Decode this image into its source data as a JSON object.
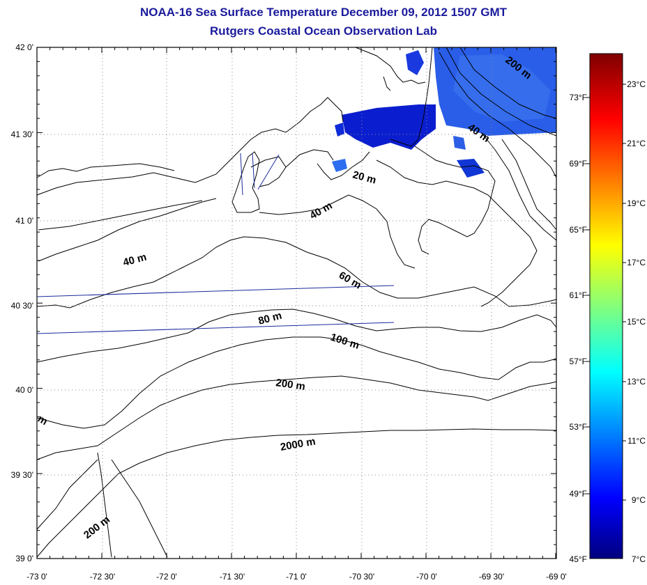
{
  "header": {
    "title": "NOAA-16 Sea Surface Temperature December 09, 2012 1507 GMT",
    "subtitle": "Rutgers Coastal Ocean Observation Lab"
  },
  "map": {
    "lat_labels": [
      "42 0'",
      "41 30'",
      "41 0'",
      "40 30'",
      "40 0'",
      "39 30'",
      "39 0'"
    ],
    "lon_labels": [
      "-73 0'",
      "-72 30'",
      "-72 0'",
      "-71 30'",
      "-71 0'",
      "-70 30'",
      "-70 0'",
      "-69 30'",
      "-69 0'"
    ],
    "contour_labels": [
      "200 m",
      "40 m",
      "20 m",
      "40 m",
      "40 m",
      "60 m",
      "80 m",
      "100 m",
      "200 m",
      "2000 m",
      "200 m",
      "m"
    ]
  },
  "colorbar": {
    "celsius_labels": [
      "23°C",
      "21°C",
      "19°C",
      "17°C",
      "15°C",
      "13°C",
      "11°C",
      "9°C",
      "7°C"
    ],
    "fahrenheit_labels": [
      "73°F",
      "69°F",
      "65°F",
      "61°F",
      "57°F",
      "53°F",
      "49°F",
      "45°F"
    ],
    "range_c": [
      7,
      24.5
    ]
  }
}
